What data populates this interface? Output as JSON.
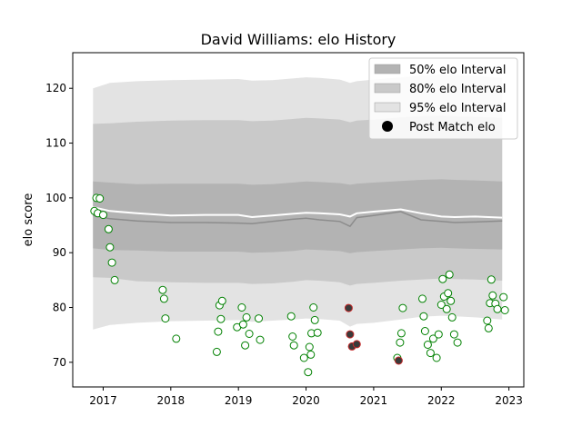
{
  "chart_data": {
    "type": "scatter",
    "title": "David Williams: elo History",
    "xlabel": "",
    "ylabel": "elo score",
    "xlim": [
      2016.55,
      2023.22
    ],
    "ylim": [
      65.5,
      126.5
    ],
    "xticks": [
      2017,
      2018,
      2019,
      2020,
      2021,
      2022,
      2023
    ],
    "xtick_labels": [
      "2017",
      "2018",
      "2019",
      "2020",
      "2021",
      "2022",
      "2023"
    ],
    "yticks": [
      70,
      80,
      90,
      100,
      110,
      120
    ],
    "ytick_labels": [
      "70",
      "80",
      "90",
      "100",
      "110",
      "120"
    ],
    "grid": false,
    "legend_position": "top-right",
    "legend": [
      {
        "label": "50% elo Interval",
        "kind": "band",
        "color": "#b3b3b3"
      },
      {
        "label": "80% elo Interval",
        "kind": "band",
        "color": "#c9c9c9"
      },
      {
        "label": "95% elo Interval",
        "kind": "band",
        "color": "#e3e3e3"
      },
      {
        "label": "Post Match elo",
        "kind": "marker",
        "color": "#000000"
      }
    ],
    "colors": {
      "band50": "#b3b3b3",
      "band80": "#c9c9c9",
      "band95": "#e3e3e3",
      "mean_line": "#ffffff",
      "median_line": "#8c8c8c",
      "point_edge": "#008000",
      "point_fill": "#ffffff",
      "loss_fill": "#3a3a3a",
      "loss_edge": "#c62828"
    },
    "bands": {
      "x": [
        2016.85,
        2017.1,
        2017.5,
        2018.0,
        2018.5,
        2019.0,
        2019.2,
        2019.5,
        2019.8,
        2020.0,
        2020.2,
        2020.5,
        2020.65,
        2020.75,
        2021.0,
        2021.4,
        2021.7,
        2022.0,
        2022.2,
        2022.5,
        2022.9
      ],
      "p95_lo": [
        76.0,
        76.8,
        77.2,
        77.5,
        77.6,
        77.7,
        77.4,
        77.6,
        77.8,
        78.0,
        77.9,
        77.6,
        76.5,
        77.0,
        77.2,
        77.8,
        78.3,
        78.5,
        78.4,
        78.2,
        77.8
      ],
      "p95_hi": [
        120.0,
        121.0,
        121.3,
        121.5,
        121.6,
        121.7,
        121.4,
        121.5,
        121.8,
        122.0,
        121.9,
        121.6,
        121.0,
        121.3,
        121.6,
        122.0,
        122.3,
        122.5,
        122.4,
        122.3,
        121.9
      ],
      "p80_lo": [
        85.5,
        85.4,
        84.8,
        84.6,
        84.5,
        84.5,
        84.3,
        84.4,
        84.7,
        85.0,
        84.9,
        84.6,
        84.0,
        84.3,
        84.5,
        84.9,
        85.1,
        85.3,
        85.2,
        85.1,
        84.9
      ],
      "p80_hi": [
        113.5,
        113.6,
        113.9,
        114.1,
        114.2,
        114.2,
        114.0,
        114.1,
        114.4,
        114.6,
        114.5,
        114.3,
        113.8,
        114.1,
        114.3,
        114.7,
        114.9,
        115.0,
        114.9,
        114.8,
        114.6
      ],
      "p50_lo": [
        90.8,
        90.5,
        90.4,
        90.2,
        90.2,
        90.2,
        90.0,
        90.1,
        90.3,
        90.6,
        90.5,
        90.3,
        89.9,
        90.1,
        90.3,
        90.6,
        90.8,
        90.9,
        90.8,
        90.7,
        90.6
      ],
      "p50_hi": [
        103.0,
        102.8,
        102.5,
        102.6,
        102.6,
        102.6,
        102.4,
        102.5,
        102.8,
        103.0,
        102.9,
        102.7,
        102.4,
        102.6,
        102.8,
        103.1,
        103.3,
        103.4,
        103.3,
        103.2,
        103.0
      ],
      "mean": [
        98.3,
        97.6,
        97.2,
        96.8,
        96.9,
        96.9,
        96.5,
        96.8,
        97.1,
        97.3,
        97.2,
        97.0,
        96.6,
        97.2,
        97.5,
        97.9,
        97.2,
        96.6,
        96.5,
        96.6,
        96.4
      ],
      "median": [
        96.8,
        96.2,
        95.8,
        95.5,
        95.5,
        95.4,
        95.3,
        95.7,
        96.1,
        96.3,
        96.0,
        95.7,
        94.8,
        96.4,
        96.8,
        97.5,
        96.0,
        95.7,
        95.5,
        95.6,
        95.8
      ]
    },
    "points": [
      {
        "x": 2016.87,
        "y": 97.6,
        "result": "win"
      },
      {
        "x": 2016.9,
        "y": 100.0,
        "result": "win"
      },
      {
        "x": 2016.92,
        "y": 97.2,
        "result": "win"
      },
      {
        "x": 2016.95,
        "y": 99.9,
        "result": "win"
      },
      {
        "x": 2017.0,
        "y": 96.9,
        "result": "win"
      },
      {
        "x": 2017.08,
        "y": 94.3,
        "result": "win"
      },
      {
        "x": 2017.1,
        "y": 91.0,
        "result": "win"
      },
      {
        "x": 2017.13,
        "y": 88.2,
        "result": "win"
      },
      {
        "x": 2017.17,
        "y": 85.0,
        "result": "win"
      },
      {
        "x": 2017.88,
        "y": 83.2,
        "result": "win"
      },
      {
        "x": 2017.9,
        "y": 81.6,
        "result": "win"
      },
      {
        "x": 2017.92,
        "y": 78.0,
        "result": "win"
      },
      {
        "x": 2018.08,
        "y": 74.3,
        "result": "win"
      },
      {
        "x": 2018.68,
        "y": 71.9,
        "result": "win"
      },
      {
        "x": 2018.7,
        "y": 75.6,
        "result": "win"
      },
      {
        "x": 2018.72,
        "y": 80.4,
        "result": "win"
      },
      {
        "x": 2018.74,
        "y": 77.9,
        "result": "win"
      },
      {
        "x": 2018.76,
        "y": 81.2,
        "result": "win"
      },
      {
        "x": 2018.98,
        "y": 76.4,
        "result": "win"
      },
      {
        "x": 2019.05,
        "y": 80.0,
        "result": "win"
      },
      {
        "x": 2019.07,
        "y": 76.9,
        "result": "win"
      },
      {
        "x": 2019.1,
        "y": 73.1,
        "result": "win"
      },
      {
        "x": 2019.12,
        "y": 78.2,
        "result": "win"
      },
      {
        "x": 2019.16,
        "y": 75.2,
        "result": "win"
      },
      {
        "x": 2019.3,
        "y": 78.0,
        "result": "win"
      },
      {
        "x": 2019.32,
        "y": 74.1,
        "result": "win"
      },
      {
        "x": 2019.78,
        "y": 78.4,
        "result": "win"
      },
      {
        "x": 2019.8,
        "y": 74.7,
        "result": "win"
      },
      {
        "x": 2019.82,
        "y": 73.1,
        "result": "win"
      },
      {
        "x": 2019.97,
        "y": 70.8,
        "result": "win"
      },
      {
        "x": 2020.03,
        "y": 68.2,
        "result": "win"
      },
      {
        "x": 2020.05,
        "y": 72.8,
        "result": "win"
      },
      {
        "x": 2020.07,
        "y": 71.4,
        "result": "win"
      },
      {
        "x": 2020.08,
        "y": 75.3,
        "result": "win"
      },
      {
        "x": 2020.11,
        "y": 80.0,
        "result": "win"
      },
      {
        "x": 2020.13,
        "y": 77.7,
        "result": "win"
      },
      {
        "x": 2020.17,
        "y": 75.4,
        "result": "win"
      },
      {
        "x": 2020.63,
        "y": 79.9,
        "result": "loss"
      },
      {
        "x": 2020.65,
        "y": 75.1,
        "result": "loss"
      },
      {
        "x": 2020.68,
        "y": 72.9,
        "result": "loss"
      },
      {
        "x": 2020.75,
        "y": 73.3,
        "result": "loss"
      },
      {
        "x": 2021.35,
        "y": 70.8,
        "result": "win"
      },
      {
        "x": 2021.37,
        "y": 70.3,
        "result": "loss"
      },
      {
        "x": 2021.39,
        "y": 73.6,
        "result": "win"
      },
      {
        "x": 2021.41,
        "y": 75.3,
        "result": "win"
      },
      {
        "x": 2021.43,
        "y": 79.9,
        "result": "win"
      },
      {
        "x": 2021.72,
        "y": 81.6,
        "result": "win"
      },
      {
        "x": 2021.74,
        "y": 78.4,
        "result": "win"
      },
      {
        "x": 2021.76,
        "y": 75.7,
        "result": "win"
      },
      {
        "x": 2021.8,
        "y": 73.2,
        "result": "win"
      },
      {
        "x": 2021.84,
        "y": 71.7,
        "result": "win"
      },
      {
        "x": 2021.88,
        "y": 74.3,
        "result": "win"
      },
      {
        "x": 2021.93,
        "y": 70.8,
        "result": "win"
      },
      {
        "x": 2021.96,
        "y": 75.1,
        "result": "win"
      },
      {
        "x": 2022.0,
        "y": 80.5,
        "result": "win"
      },
      {
        "x": 2022.02,
        "y": 85.2,
        "result": "win"
      },
      {
        "x": 2022.04,
        "y": 82.0,
        "result": "win"
      },
      {
        "x": 2022.08,
        "y": 79.7,
        "result": "win"
      },
      {
        "x": 2022.1,
        "y": 82.6,
        "result": "win"
      },
      {
        "x": 2022.12,
        "y": 86.0,
        "result": "win"
      },
      {
        "x": 2022.14,
        "y": 81.2,
        "result": "win"
      },
      {
        "x": 2022.16,
        "y": 78.2,
        "result": "win"
      },
      {
        "x": 2022.19,
        "y": 75.1,
        "result": "win"
      },
      {
        "x": 2022.24,
        "y": 73.6,
        "result": "win"
      },
      {
        "x": 2022.68,
        "y": 77.6,
        "result": "win"
      },
      {
        "x": 2022.7,
        "y": 76.2,
        "result": "win"
      },
      {
        "x": 2022.72,
        "y": 80.8,
        "result": "win"
      },
      {
        "x": 2022.74,
        "y": 85.1,
        "result": "win"
      },
      {
        "x": 2022.76,
        "y": 82.2,
        "result": "win"
      },
      {
        "x": 2022.8,
        "y": 80.7,
        "result": "win"
      },
      {
        "x": 2022.83,
        "y": 79.7,
        "result": "win"
      },
      {
        "x": 2022.92,
        "y": 81.9,
        "result": "win"
      },
      {
        "x": 2022.94,
        "y": 79.5,
        "result": "win"
      }
    ]
  }
}
